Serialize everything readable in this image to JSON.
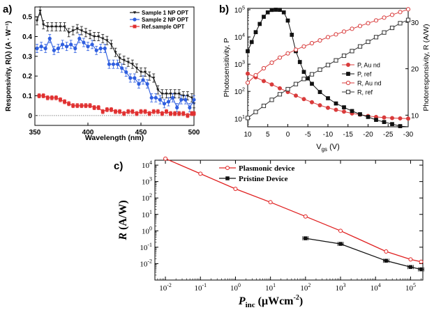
{
  "panels": {
    "a": {
      "label": "a)",
      "type": "line",
      "title": "",
      "xlabel": "Wavelength (nm)",
      "ylabel": "Responsivity, R(λ) (A · W⁻¹)",
      "xlim": [
        350,
        500
      ],
      "ylim": [
        -0.05,
        0.55
      ],
      "xticks": [
        "350",
        "400",
        "450",
        "500"
      ],
      "yticks": [
        "0",
        "0.1",
        "0.2",
        "0.3",
        "0.4",
        "0.5"
      ],
      "series": [
        {
          "name": "Sample 1 NP OPT",
          "color": "#1a1a1a",
          "marker": "tri-down",
          "x": [
            352,
            355,
            358,
            362,
            366,
            370,
            374,
            378,
            382,
            386,
            390,
            394,
            398,
            402,
            406,
            410,
            414,
            418,
            422,
            426,
            430,
            434,
            438,
            442,
            446,
            450,
            454,
            458,
            462,
            466,
            470,
            474,
            478,
            482,
            486,
            490,
            494,
            498,
            500
          ],
          "y": [
            0.48,
            0.53,
            0.46,
            0.45,
            0.45,
            0.45,
            0.45,
            0.45,
            0.42,
            0.43,
            0.44,
            0.43,
            0.42,
            0.41,
            0.4,
            0.4,
            0.39,
            0.38,
            0.36,
            0.32,
            0.29,
            0.28,
            0.27,
            0.26,
            0.24,
            0.22,
            0.22,
            0.2,
            0.19,
            0.13,
            0.11,
            0.11,
            0.11,
            0.11,
            0.11,
            0.1,
            0.1,
            0.09,
            0.06
          ]
        },
        {
          "name": "Sample 2 NP OPT",
          "color": "#2f5fe0",
          "marker": "circle",
          "x": [
            352,
            356,
            360,
            364,
            368,
            372,
            376,
            380,
            384,
            388,
            392,
            396,
            400,
            404,
            408,
            412,
            416,
            420,
            424,
            428,
            432,
            436,
            440,
            444,
            448,
            452,
            456,
            460,
            464,
            468,
            472,
            476,
            480,
            484,
            488,
            492,
            496,
            500
          ],
          "y": [
            0.34,
            0.35,
            0.34,
            0.39,
            0.33,
            0.34,
            0.36,
            0.35,
            0.36,
            0.34,
            0.39,
            0.37,
            0.35,
            0.36,
            0.33,
            0.34,
            0.34,
            0.26,
            0.26,
            0.26,
            0.24,
            0.22,
            0.19,
            0.19,
            0.16,
            0.18,
            0.16,
            0.09,
            0.09,
            0.08,
            0.06,
            0.07,
            0.09,
            0.04,
            0.08,
            0.08,
            0.04,
            0.08
          ]
        },
        {
          "name": "Ref.sample OPT",
          "color": "#e03030",
          "marker": "square",
          "x": [
            354,
            358,
            362,
            366,
            370,
            374,
            378,
            382,
            386,
            390,
            394,
            398,
            402,
            406,
            410,
            414,
            418,
            422,
            426,
            430,
            434,
            438,
            442,
            446,
            450,
            454,
            458,
            462,
            466,
            470,
            474,
            478,
            482,
            486,
            490,
            494,
            498,
            500
          ],
          "y": [
            0.1,
            0.1,
            0.09,
            0.09,
            0.09,
            0.08,
            0.07,
            0.06,
            0.05,
            0.05,
            0.05,
            0.05,
            0.05,
            0.04,
            0.04,
            0.02,
            0.03,
            0.03,
            0.02,
            0.02,
            0.01,
            0.02,
            0.02,
            0.01,
            0.02,
            0.02,
            0.01,
            0.02,
            0.02,
            0.01,
            0.02,
            0.01,
            0.01,
            0.01,
            0.01,
            0.0,
            0.01,
            0.01
          ]
        }
      ]
    },
    "b": {
      "label": "b)",
      "type": "line",
      "xlabel": "V",
      "xlabel_sub": "gs",
      "xlabel_unit": "(V)",
      "ylabel_left": "Photosensitivity, P",
      "ylabel_right": "Photoresponsivity, R (A/W)",
      "xlim": [
        10,
        -30
      ],
      "ylim_left_exp": [
        0.7,
        5.05
      ],
      "ylim_right": [
        7.5,
        33
      ],
      "xticks": [
        "10",
        "5",
        "0",
        "-5",
        "-10",
        "-15",
        "-20",
        "-25",
        "-30"
      ],
      "yticks_left": [
        {
          "base": "10",
          "exp": "1"
        },
        {
          "base": "10",
          "exp": "2"
        },
        {
          "base": "10",
          "exp": "3"
        },
        {
          "base": "10",
          "exp": "4"
        },
        {
          "base": "10",
          "exp": "5"
        }
      ],
      "yticks_right": [
        "10",
        "20",
        "30"
      ],
      "series": [
        {
          "name": "P, Au nd",
          "axis": "left",
          "color": "#d93b3b",
          "marker": "filled-circle",
          "x": [
            10,
            8,
            6,
            4,
            2,
            0,
            -2,
            -4,
            -6,
            -8,
            -10,
            -12,
            -14,
            -16,
            -18,
            -20,
            -22,
            -24,
            -26,
            -28,
            -30
          ],
          "y": [
            450,
            330,
            240,
            180,
            130,
            95,
            70,
            52,
            40,
            31,
            25,
            21,
            18,
            15.5,
            14,
            12.5,
            11.5,
            11,
            10.5,
            10.2,
            10
          ]
        },
        {
          "name": "P, ref",
          "axis": "left",
          "color": "#111111",
          "marker": "filled-square",
          "x": [
            10,
            9,
            8,
            7,
            6,
            5,
            4,
            3,
            2,
            1,
            0,
            -1,
            -2,
            -3,
            -4,
            -5,
            -6,
            -8,
            -10,
            -12,
            -14,
            -16,
            -18,
            -20,
            -22,
            -24,
            -26,
            -28,
            -30
          ],
          "y": [
            3000,
            6500,
            15000,
            30000,
            55000,
            80000,
            98000,
            100000,
            99000,
            80000,
            40000,
            12000,
            3000,
            1200,
            520,
            300,
            190,
            95,
            56,
            36,
            26,
            19,
            14.5,
            11.5,
            9,
            7.5,
            6.3,
            5.3,
            4.5
          ]
        },
        {
          "name": "R, Au nd",
          "axis": "right",
          "color": "#d93b3b",
          "marker": "open-circle",
          "x": [
            10,
            8,
            6,
            4,
            2,
            0,
            -2,
            -4,
            -6,
            -8,
            -10,
            -12,
            -14,
            -16,
            -18,
            -20,
            -22,
            -24,
            -26,
            -28,
            -30
          ],
          "y": [
            17,
            18.6,
            20.1,
            21.3,
            22.4,
            23.3,
            24.1,
            24.8,
            25.5,
            26.1,
            26.8,
            27.4,
            28,
            28.6,
            29.2,
            29.8,
            30.4,
            31,
            31.6,
            32.2,
            32.8
          ]
        },
        {
          "name": "R, ref",
          "axis": "right",
          "color": "#333333",
          "marker": "open-square",
          "x": [
            10,
            8,
            6,
            4,
            2,
            0,
            -2,
            -4,
            -6,
            -8,
            -10,
            -12,
            -14,
            -16,
            -18,
            -20,
            -22,
            -24,
            -26,
            -28,
            -30
          ],
          "y": [
            9.4,
            10.7,
            12,
            13.3,
            14.5,
            15.6,
            16.7,
            17.8,
            18.8,
            19.8,
            20.8,
            21.8,
            22.8,
            23.8,
            24.8,
            25.8,
            26.8,
            27.8,
            28.8,
            29.8,
            30.5
          ]
        }
      ]
    },
    "c": {
      "label": "c)",
      "type": "line",
      "ylabel": "R",
      "ylabel_unit": "(A/W)",
      "xlabel": "P",
      "xlabel_sub": "inc",
      "xlabel_unit": "(μWcm",
      "xlabel_unit_sup": "-2",
      "xlabel_unit_close": ")",
      "xlim_exp": [
        -2.3,
        5.35
      ],
      "ylim_exp": [
        -3,
        4.3
      ],
      "xticks": [
        {
          "base": "10",
          "exp": "-2"
        },
        {
          "base": "10",
          "exp": "-1"
        },
        {
          "base": "10",
          "exp": "0"
        },
        {
          "base": "10",
          "exp": "1"
        },
        {
          "base": "10",
          "exp": "2"
        },
        {
          "base": "10",
          "exp": "3"
        },
        {
          "base": "10",
          "exp": "4"
        },
        {
          "base": "10",
          "exp": "5"
        }
      ],
      "yticks": [
        {
          "base": "10",
          "exp": "-2"
        },
        {
          "base": "10",
          "exp": "-1"
        },
        {
          "base": "10",
          "exp": "0"
        },
        {
          "base": "10",
          "exp": "1"
        },
        {
          "base": "10",
          "exp": "2"
        },
        {
          "base": "10",
          "exp": "3"
        },
        {
          "base": "10",
          "exp": "4"
        }
      ],
      "series": [
        {
          "name": "Plasmonic device",
          "color": "#e02020",
          "marker": "open-circle",
          "x": [
            0.01,
            0.1,
            1,
            10,
            100,
            1000,
            20000,
            100000,
            200000
          ],
          "y": [
            25000,
            3000,
            360,
            55,
            7.5,
            1.0,
            0.055,
            0.018,
            0.013
          ]
        },
        {
          "name": "Pristine Device",
          "color": "#111111",
          "marker": "filled-square",
          "x": [
            100,
            1000,
            20000,
            100000,
            200000
          ],
          "y": [
            0.35,
            0.16,
            0.015,
            0.0062,
            0.0045
          ]
        }
      ]
    }
  }
}
